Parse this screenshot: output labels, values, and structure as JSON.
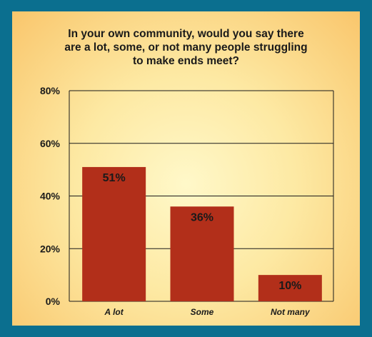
{
  "chart_data": {
    "type": "bar",
    "title_lines": [
      "In your own community, would you say there",
      "are a lot, some, or not many people struggling",
      "to make ends meet?"
    ],
    "categories": [
      "A lot",
      "Some",
      "Not many"
    ],
    "values": [
      51,
      36,
      10
    ],
    "data_labels": [
      "51%",
      "36%",
      "10%"
    ],
    "ylim": [
      0,
      80
    ],
    "y_ticks": [
      0,
      20,
      40,
      60,
      80
    ],
    "y_tick_labels": [
      "0%",
      "20%",
      "40%",
      "60%",
      "80%"
    ],
    "grid": true,
    "bar_color": "#b22f1a",
    "xlabel": "",
    "ylabel": ""
  },
  "colors": {
    "frame": "#0b6f8f",
    "panel_center": "#fff8c9",
    "panel_edge": "#f9c66c"
  }
}
